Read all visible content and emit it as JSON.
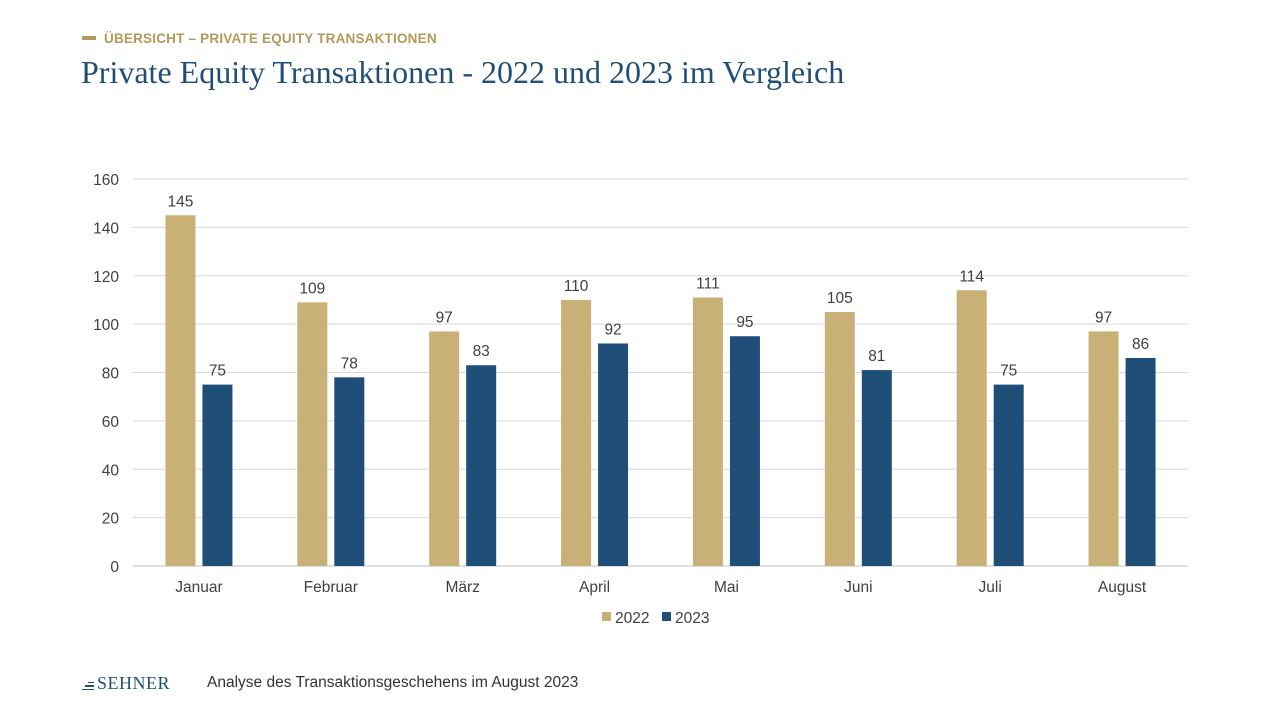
{
  "header": {
    "section_label": "ÜBERSICHT – PRIVATE EQUITY TRANSAKTIONEN",
    "title": "Private Equity Transaktionen - 2022 und 2023 im Vergleich"
  },
  "footer": {
    "logo_text": "SEHNER",
    "caption": "Analyse des Transaktionsgeschehens im August 2023"
  },
  "colors": {
    "accent_gold": "#b19a5a",
    "title_blue": "#1f4e79",
    "series_2022": "#c9b077",
    "series_2023": "#1f4e79",
    "grid": "#d9d9d9",
    "axis_text": "#404040"
  },
  "chart_data": {
    "type": "bar",
    "categories": [
      "Januar",
      "Februar",
      "März",
      "April",
      "Mai",
      "Juni",
      "Juli",
      "August"
    ],
    "series": [
      {
        "name": "2022",
        "values": [
          145,
          109,
          97,
          110,
          111,
          105,
          114,
          97
        ],
        "color": "#c9b077"
      },
      {
        "name": "2023",
        "values": [
          75,
          78,
          83,
          92,
          95,
          81,
          75,
          86
        ],
        "color": "#1f4e79"
      }
    ],
    "yticks": [
      0,
      20,
      40,
      60,
      80,
      100,
      120,
      140,
      160
    ],
    "ylim": [
      0,
      160
    ],
    "grid": true,
    "data_labels": true,
    "legend": "bottom-center"
  }
}
